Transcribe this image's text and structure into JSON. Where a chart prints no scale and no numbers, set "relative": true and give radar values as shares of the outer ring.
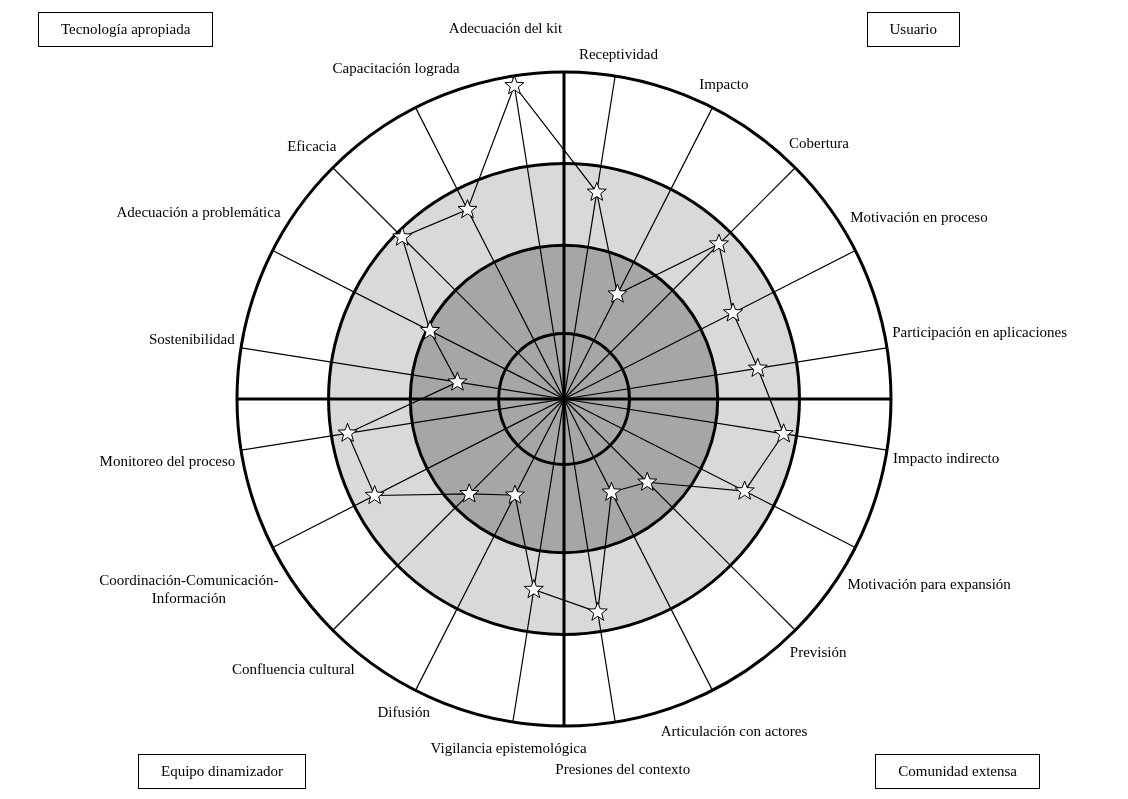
{
  "chart_data": {
    "type": "radar",
    "relative": true,
    "marker": "star",
    "legend": false,
    "grid": true,
    "categories": [
      "Receptividad",
      "Impacto",
      "Cobertura",
      "Motivación en proceso",
      "Participación en aplicaciones",
      "Impacto indirecto",
      "Motivación para expansión",
      "Previsión",
      "Articulación con actores",
      "Presiones del contexto",
      "Vigilancia epistemológica",
      "Difusión",
      "Confluencia cultural",
      "Coordinación-Comunicación-Información",
      "Monitoreo del proceso",
      "Sostenibilidad",
      "Adecuación a problemática",
      "Eficacia",
      "Capacitación lograda",
      "Adecuación del kit"
    ],
    "series": [
      {
        "color": "#000000",
        "values": [
          0.64,
          0.36,
          0.67,
          0.58,
          0.6,
          0.68,
          0.62,
          0.36,
          0.32,
          0.66,
          0.59,
          0.33,
          0.41,
          0.65,
          0.67,
          0.33,
          0.46,
          0.7,
          0.65,
          0.97
        ]
      }
    ],
    "annotations": [
      "Tecnología apropiada",
      "Usuario",
      "Equipo dinamizador",
      "Comunidad extensa"
    ]
  }
}
